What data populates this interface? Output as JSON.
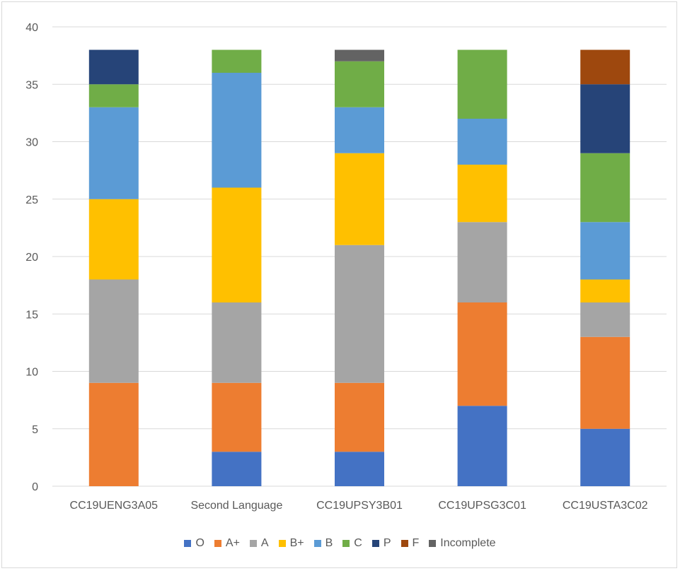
{
  "chart_data": {
    "type": "bar",
    "stacked": true,
    "title": "",
    "xlabel": "",
    "ylabel": "",
    "ylim": [
      0,
      40
    ],
    "yticks": [
      0,
      5,
      10,
      15,
      20,
      25,
      30,
      35,
      40
    ],
    "grid": true,
    "legend_position": "bottom",
    "categories": [
      "CC19UENG3A05",
      "Second Language",
      "CC19UPSY3B01",
      "CC19UPSG3C01",
      "CC19USTA3C02"
    ],
    "series": [
      {
        "name": "O",
        "color": "#4472c4",
        "values": [
          0,
          3,
          3,
          7,
          5
        ]
      },
      {
        "name": "A+",
        "color": "#ed7d31",
        "values": [
          9,
          6,
          6,
          9,
          8
        ]
      },
      {
        "name": "A",
        "color": "#a5a5a5",
        "values": [
          9,
          7,
          12,
          7,
          3
        ]
      },
      {
        "name": "B+",
        "color": "#ffc000",
        "values": [
          7,
          10,
          8,
          5,
          2
        ]
      },
      {
        "name": "B",
        "color": "#5b9bd5",
        "values": [
          8,
          10,
          4,
          4,
          5
        ]
      },
      {
        "name": "C",
        "color": "#70ad47",
        "values": [
          2,
          2,
          4,
          6,
          6
        ]
      },
      {
        "name": "P",
        "color": "#264478",
        "values": [
          3,
          0,
          0,
          0,
          6
        ]
      },
      {
        "name": "F",
        "color": "#9e480e",
        "values": [
          0,
          0,
          0,
          0,
          3
        ]
      },
      {
        "name": "Incomplete",
        "color": "#636363",
        "values": [
          0,
          0,
          1,
          0,
          0
        ]
      }
    ]
  }
}
